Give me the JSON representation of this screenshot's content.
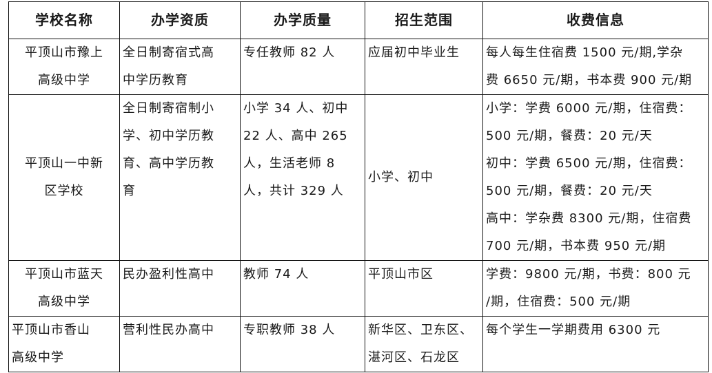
{
  "headers": [
    "学校名称",
    "办学资质",
    "办学质量",
    "招生范围",
    "收费信息"
  ],
  "rows": [
    {
      "name": [
        "平顶山市豫上",
        "高级中学"
      ],
      "qualification": [
        "全日制寄宿式高",
        "中学历教育"
      ],
      "quality": [
        "专任教师 82 人"
      ],
      "scope": [
        "应届初中毕业生"
      ],
      "fees": [
        "每人每生住宿费 1500 元/期,学杂",
        "费 6650 元/期，书本费 900 元/期"
      ]
    },
    {
      "name": [
        "平顶山一中新",
        "区学校"
      ],
      "qualification": [
        "全日制寄宿制小",
        "学、初中学历教",
        "育、高中学历教",
        "育"
      ],
      "quality": [
        "小学 34 人、初中",
        "22 人、高中 265",
        "人，生活老师 8",
        "人，共计 329 人"
      ],
      "scope": [
        "小学、初中"
      ],
      "fees": [
        "小学：学费 6000 元/期，住宿费：",
        "500 元/期，餐费：20 元/天",
        "初中：学费 6500 元/期，住宿费：",
        "500 元/期，餐费：20 元/天",
        "高中：学杂费 8300 元/期，住宿费",
        "700 元/期，书本费 950 元/期"
      ]
    },
    {
      "name": [
        "平顶山市蓝天",
        "高级中学"
      ],
      "qualification": [
        "民办盈利性高中"
      ],
      "quality": [
        "教师 74 人"
      ],
      "scope": [
        "平顶山市区"
      ],
      "fees": [
        "学费：9800 元/期，书费：800 元",
        "/期，住宿费：500 元/期"
      ]
    },
    {
      "name": [
        "平顶山市香山",
        "高级中学"
      ],
      "qualification": [
        "营利性民办高中"
      ],
      "quality": [
        "专职教师 38 人"
      ],
      "scope": [
        "新华区、卫东区、",
        "湛河区、石龙区"
      ],
      "fees": [
        "每个学生一学期费用 6300 元"
      ]
    }
  ]
}
